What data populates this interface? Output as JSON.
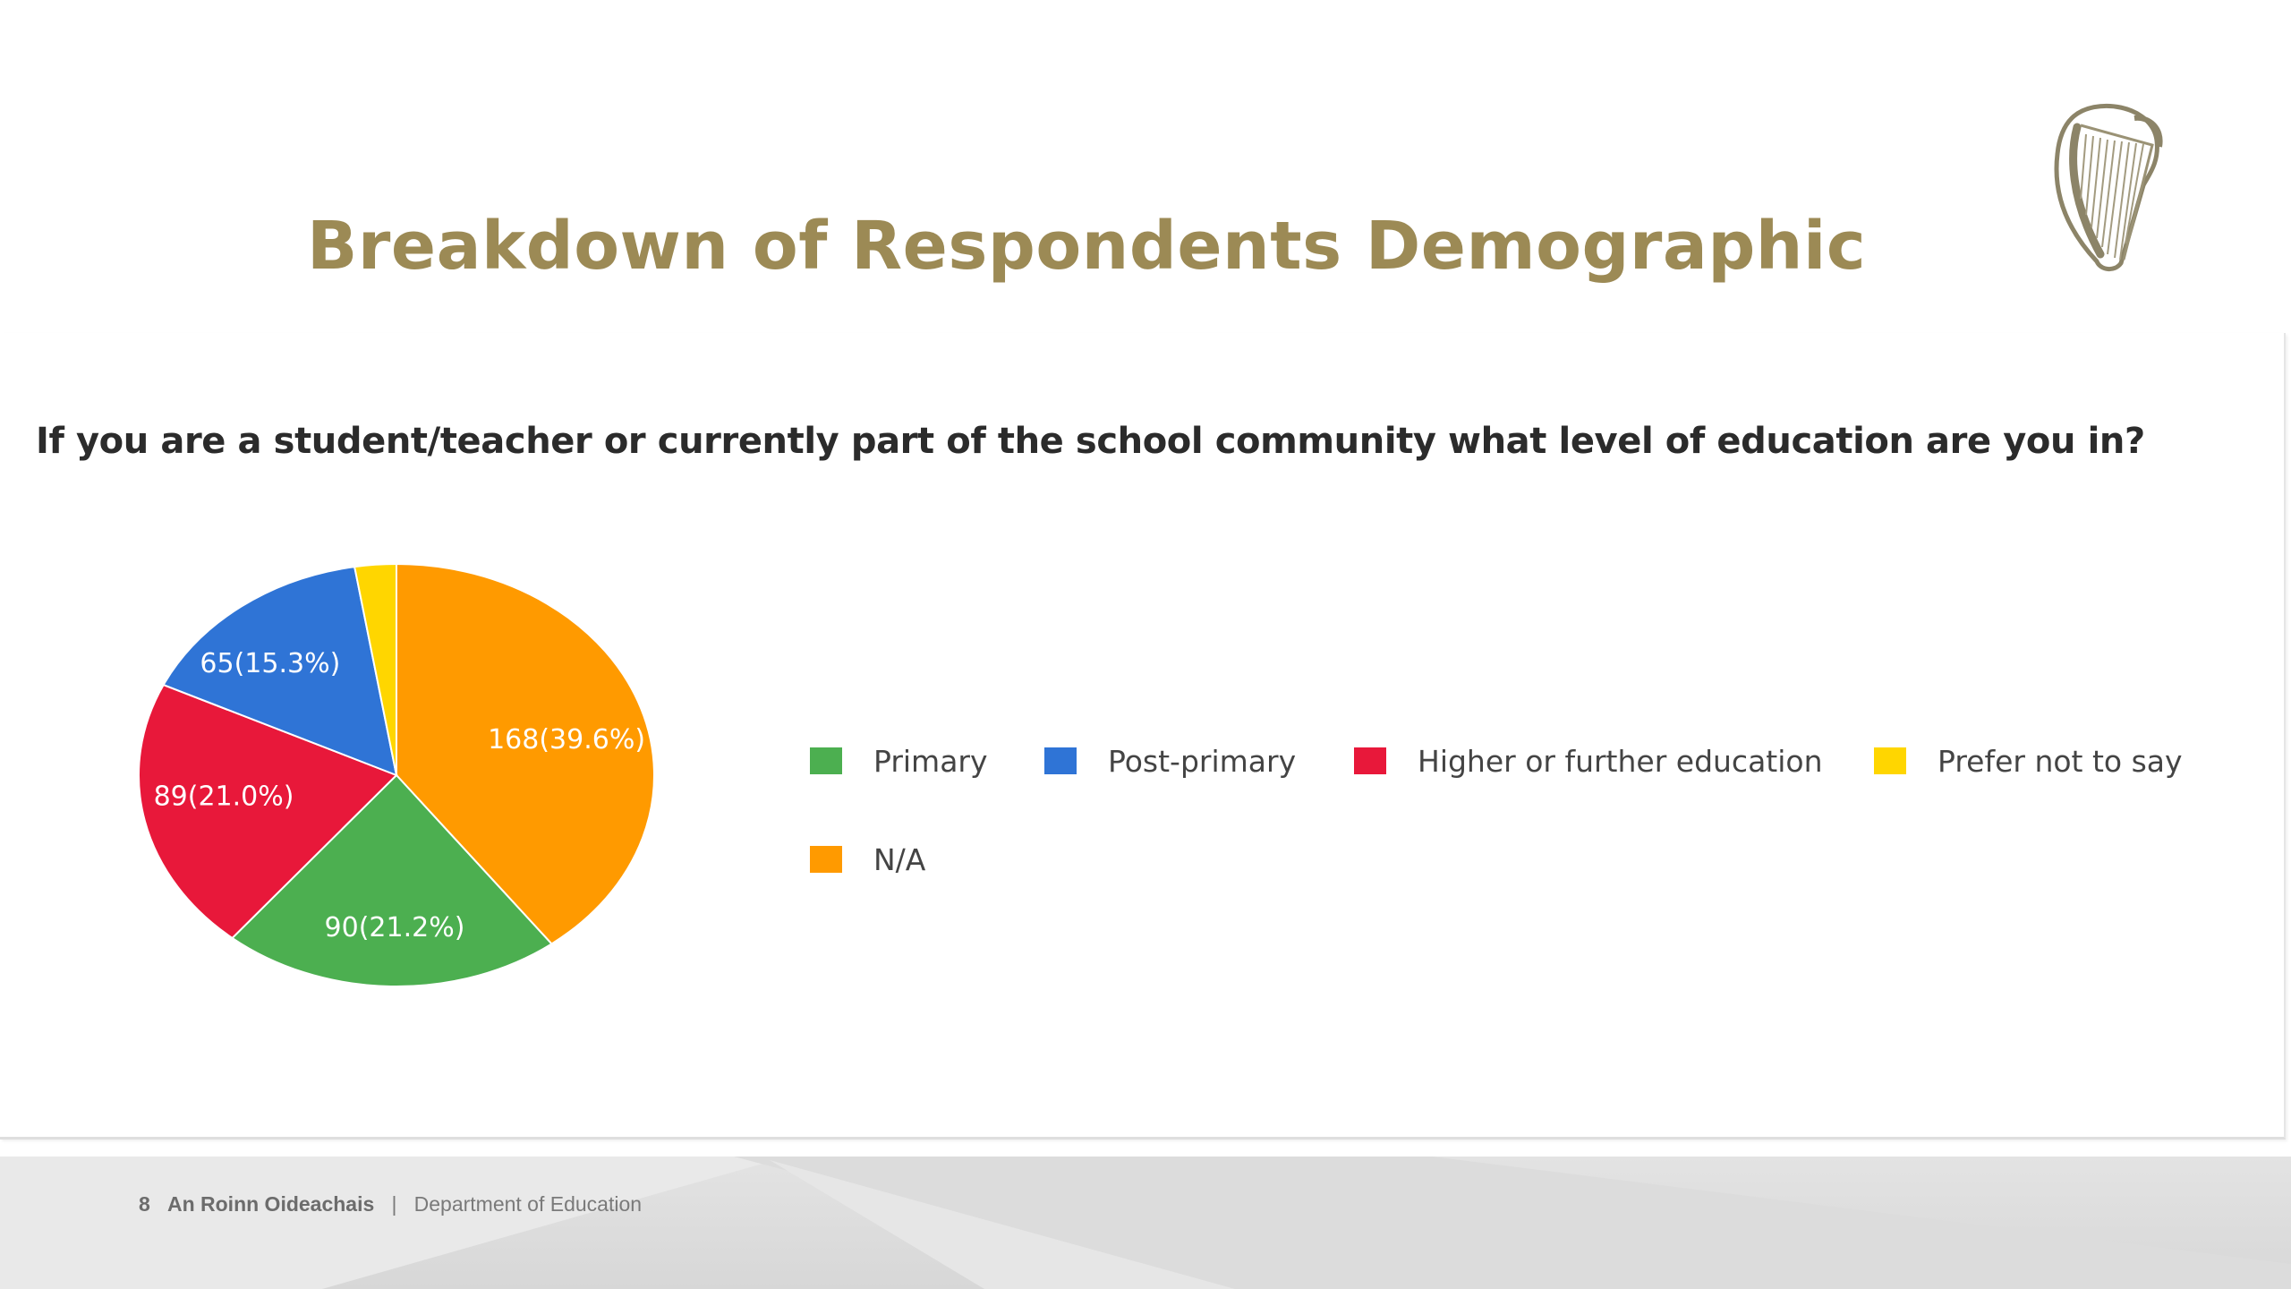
{
  "slide": {
    "title": "Breakdown of Respondents Demographic",
    "question": "If you are a student/teacher or currently part of the school community what level of education are you in?",
    "logo_icon": "irish-harp-emblem",
    "footer": {
      "page_number": "8",
      "org_irish": "An Roinn Oideachais",
      "separator": "|",
      "org_english": "Department of Education"
    }
  },
  "chart_data": {
    "type": "pie",
    "title": "",
    "categories": [
      "Primary",
      "Post-primary",
      "Higher or further education",
      "Prefer not to say",
      "N/A"
    ],
    "values": [
      90,
      65,
      89,
      11,
      168
    ],
    "percentages": [
      21.2,
      15.3,
      21.0,
      2.6,
      39.6
    ],
    "labels": [
      "90(21.2%)",
      "65(15.3%)",
      "89(21.0%)",
      "",
      "168(39.6%)"
    ],
    "colors": [
      "#4caf50",
      "#2f74d6",
      "#e8183a",
      "#ffd600",
      "#ff9a00"
    ],
    "start_angle_deg": 0,
    "direction": "clockwise",
    "legend_position": "right"
  }
}
